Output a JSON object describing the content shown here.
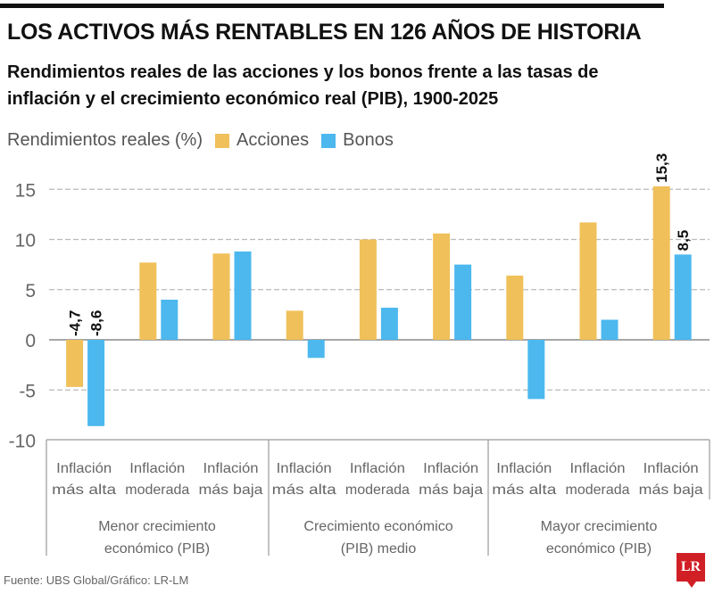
{
  "title": "LOS ACTIVOS MÁS RENTABLES EN 126 AÑOS DE HISTORIA",
  "subtitle": "Rendimientos reales de las acciones y los bonos frente a las tasas de inflación y el crecimiento económico real (PIB), 1900-2025",
  "source": "Fuente: UBS Global/Gráfico: LR-LM",
  "logo": "LR",
  "chart_data": {
    "type": "bar",
    "ylabel": "Rendimientos reales (%)",
    "ylim": [
      -10,
      15
    ],
    "yticks": [
      "15",
      "10",
      "5",
      "0",
      "-5",
      "-10"
    ],
    "ytick_values": [
      15,
      10,
      5,
      0,
      -5,
      -10
    ],
    "grid": true,
    "legend": "top-left",
    "categories": [
      "Inflación|más alta",
      "Inflación|moderada",
      "Inflación|más baja",
      "Inflación|más alta",
      "Inflación|moderada",
      "Inflación|más baja",
      "Inflación|más alta",
      "Inflación|moderada",
      "Inflación|más baja"
    ],
    "groups": [
      "Menor crecimiento|económico (PIB)",
      "Crecimiento económico|(PIB) medio",
      "Mayor crecimiento|económico (PIB)"
    ],
    "series": [
      {
        "name": "Acciones",
        "color": "#f0c05a",
        "values": [
          -4.7,
          7.7,
          8.6,
          2.9,
          10.0,
          10.6,
          6.4,
          11.7,
          15.3
        ]
      },
      {
        "name": "Bonos",
        "color": "#4cb8ee",
        "values": [
          -8.6,
          4.0,
          8.8,
          -1.8,
          3.2,
          7.5,
          -5.9,
          2.0,
          8.5
        ]
      }
    ],
    "data_labels": [
      {
        "series": 0,
        "index": 0,
        "text": "-4,7"
      },
      {
        "series": 1,
        "index": 0,
        "text": "-8,6"
      },
      {
        "series": 0,
        "index": 8,
        "text": "15,3"
      },
      {
        "series": 1,
        "index": 8,
        "text": "8,5"
      }
    ]
  }
}
